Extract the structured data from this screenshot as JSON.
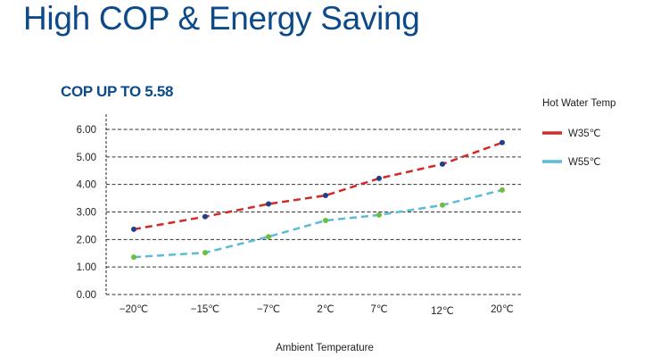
{
  "page": {
    "title": "High COP & Energy Saving",
    "subtitle": "COP UP TO 5.58"
  },
  "chart_data": {
    "type": "line",
    "title": "COP UP TO 5.58",
    "xlabel": "Ambient Temperature",
    "ylabel": "",
    "categories": [
      "-20℃",
      "-15℃",
      "-7℃",
      "2℃",
      "7℃",
      "12℃",
      "20℃"
    ],
    "ylim": [
      0,
      6
    ],
    "yticks": [
      "0.00",
      "1.00",
      "2.00",
      "3.00",
      "4.00",
      "5.00",
      "6.00"
    ],
    "grid": true,
    "legend_title": "Hot Water Temp",
    "legend_position": "right",
    "series": [
      {
        "name": "W35℃",
        "values": [
          2.37,
          2.83,
          3.29,
          3.6,
          4.22,
          4.74,
          5.52
        ],
        "line_color": "#d42a27",
        "marker_color": "#1f3f8f"
      },
      {
        "name": "W55℃",
        "values": [
          1.36,
          1.52,
          2.1,
          2.69,
          2.89,
          3.25,
          3.8
        ],
        "line_color": "#5bbcd6",
        "marker_color": "#6cbf3a"
      }
    ]
  }
}
